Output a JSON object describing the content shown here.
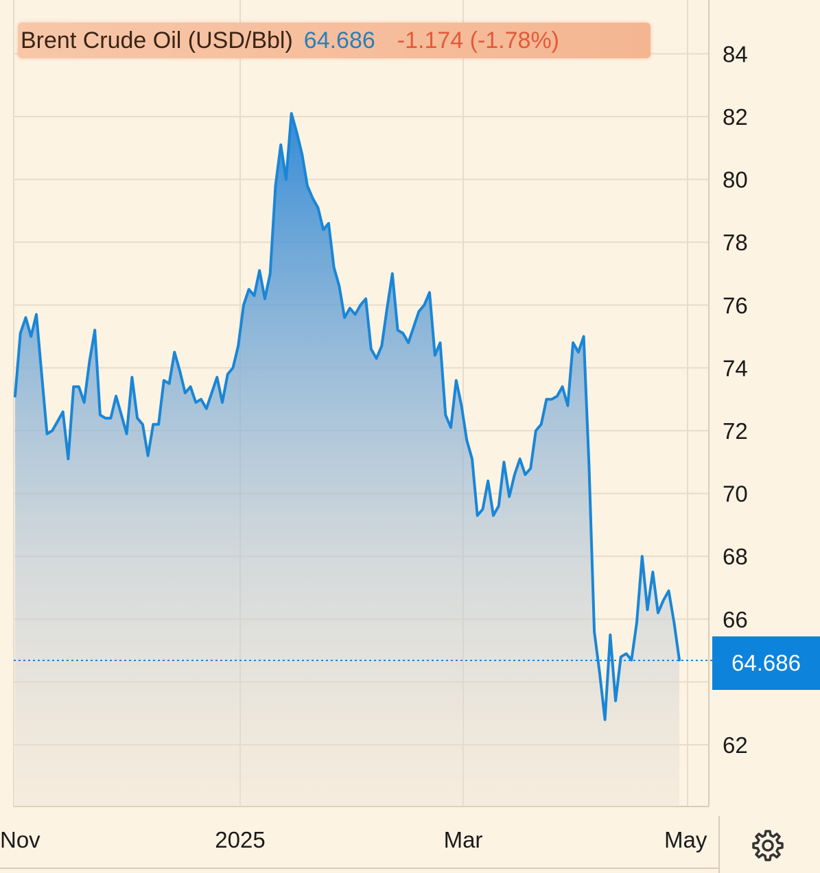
{
  "header": {
    "title": "Brent Crude Oil (USD/Bbl)",
    "price": "64.686",
    "change": "-1.174 (-1.78%)"
  },
  "price_tag": "64.686",
  "settings": {
    "icon": "gear-icon"
  },
  "colors": {
    "line": "#1a86d6",
    "price_text": "#2a7fb8",
    "change_text": "#e35a3a",
    "tag_bg": "#0d83db",
    "background": "#fdf3e3"
  },
  "chart_data": {
    "type": "area",
    "title": "Brent Crude Oil (USD/Bbl)",
    "xlabel": "",
    "ylabel": "",
    "ylim": [
      60,
      85
    ],
    "grid": true,
    "x_ticks": [
      "Nov",
      "2025",
      "Mar",
      "May"
    ],
    "y_ticks": [
      62,
      64,
      66,
      68,
      70,
      72,
      74,
      76,
      78,
      80,
      82,
      84
    ],
    "last_value": 64.686,
    "series": [
      {
        "values": [
          73.1,
          75.1,
          75.6,
          75.0,
          75.7,
          73.8,
          71.9,
          72.0,
          72.3,
          72.6,
          71.1,
          73.4,
          73.4,
          72.9,
          74.2,
          75.2,
          72.5,
          72.4,
          72.4,
          73.1,
          72.5,
          71.9,
          73.7,
          72.4,
          72.2,
          71.2,
          72.2,
          72.2,
          73.6,
          73.5,
          74.5,
          73.9,
          73.2,
          73.4,
          72.9,
          73.0,
          72.7,
          73.2,
          73.7,
          72.9,
          73.8,
          74.0,
          74.7,
          76.0,
          76.5,
          76.3,
          77.1,
          76.2,
          77.0,
          79.8,
          81.1,
          80.0,
          82.1,
          81.5,
          80.8,
          79.8,
          79.4,
          79.1,
          78.4,
          78.6,
          77.2,
          76.6,
          75.6,
          75.9,
          75.7,
          76.0,
          76.2,
          74.6,
          74.3,
          74.7,
          75.9,
          77.0,
          75.2,
          75.1,
          74.8,
          75.3,
          75.8,
          76.0,
          76.4,
          74.4,
          74.8,
          72.5,
          72.1,
          73.6,
          72.8,
          71.7,
          71.1,
          69.3,
          69.5,
          70.4,
          69.3,
          69.6,
          71.0,
          69.9,
          70.6,
          71.1,
          70.6,
          70.8,
          72.0,
          72.2,
          73.0,
          73.0,
          73.1,
          73.4,
          72.8,
          74.8,
          74.5,
          75.0,
          70.9,
          65.6,
          64.3,
          62.8,
          65.5,
          63.4,
          64.8,
          64.9,
          64.7,
          65.9,
          68.0,
          66.3,
          67.5,
          66.2,
          66.6,
          66.9,
          65.9,
          64.7
        ]
      }
    ]
  }
}
